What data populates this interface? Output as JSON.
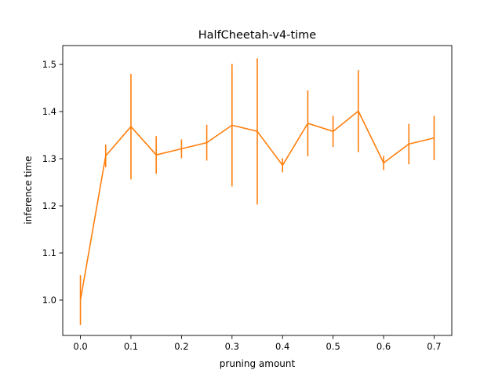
{
  "chart_data": {
    "type": "line",
    "title": "HalfCheetah-v4-time",
    "xlabel": "pruning amount",
    "ylabel": "inference time",
    "xlim": [
      -0.035,
      0.735
    ],
    "ylim": [
      0.925,
      1.54
    ],
    "x_ticks": [
      0.0,
      0.1,
      0.2,
      0.3,
      0.4,
      0.5,
      0.6,
      0.7
    ],
    "x_tick_labels": [
      "0.0",
      "0.1",
      "0.2",
      "0.3",
      "0.4",
      "0.5",
      "0.6",
      "0.7"
    ],
    "y_ticks": [
      1.0,
      1.1,
      1.2,
      1.3,
      1.4,
      1.5
    ],
    "y_tick_labels": [
      "1.0",
      "1.1",
      "1.2",
      "1.3",
      "1.4",
      "1.5"
    ],
    "grid": false,
    "line_color": "#ff7f0e",
    "series": [
      {
        "x": [
          0.0,
          0.05,
          0.1,
          0.15,
          0.2,
          0.25,
          0.3,
          0.35,
          0.4,
          0.45,
          0.5,
          0.55,
          0.6,
          0.65,
          0.7
        ],
        "y": [
          1.0,
          1.306,
          1.368,
          1.308,
          1.321,
          1.334,
          1.371,
          1.358,
          1.286,
          1.375,
          1.358,
          1.401,
          1.291,
          1.331,
          1.344
        ],
        "error": [
          0.053,
          0.024,
          0.112,
          0.04,
          0.02,
          0.038,
          0.13,
          0.155,
          0.015,
          0.07,
          0.033,
          0.087,
          0.015,
          0.043,
          0.047
        ]
      }
    ]
  }
}
